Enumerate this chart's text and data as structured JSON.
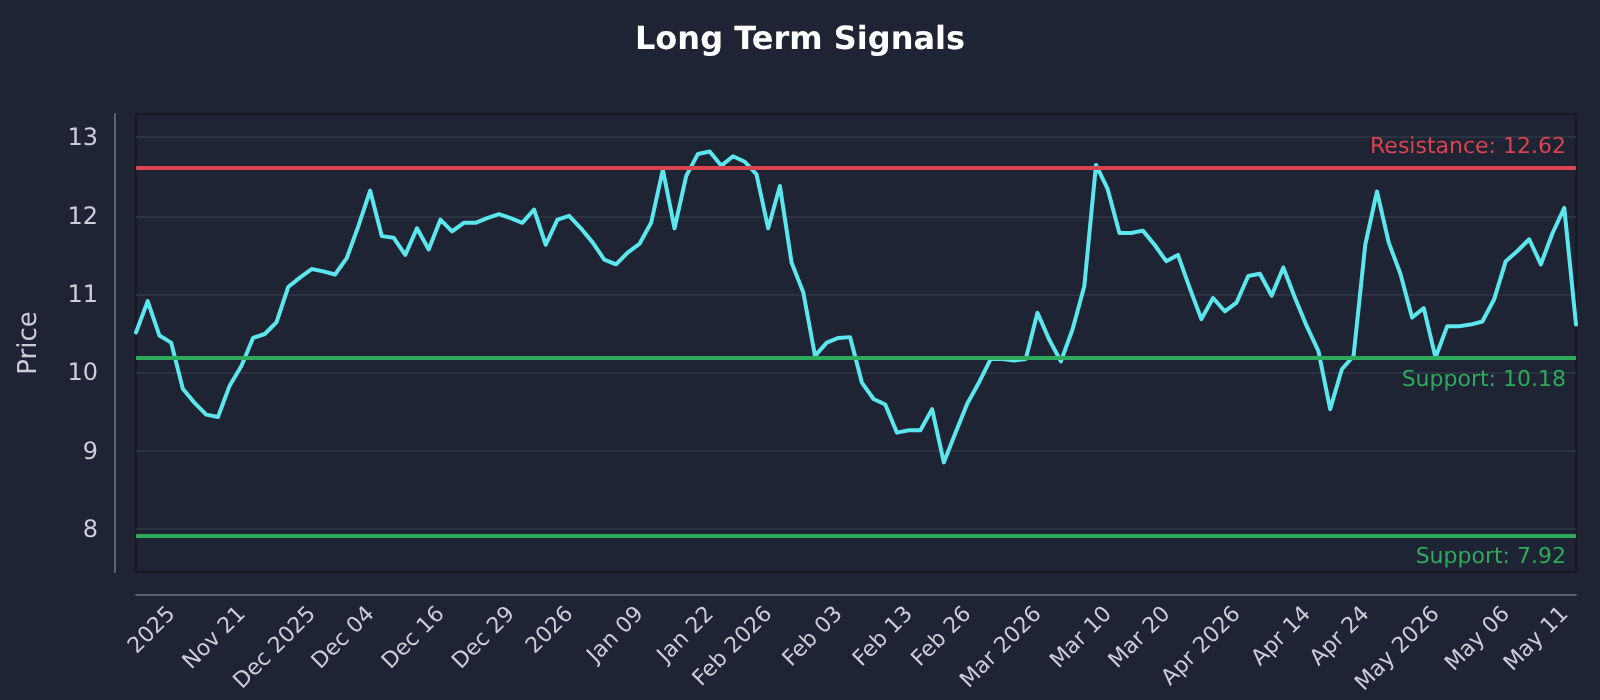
{
  "chart_data": {
    "type": "line",
    "title": "Long Term Signals",
    "ylabel": "Price",
    "categories": [
      null,
      null,
      null,
      "2025",
      null,
      null,
      null,
      null,
      null,
      "Nov 21",
      null,
      null,
      null,
      null,
      null,
      "Dec 2025",
      null,
      null,
      null,
      null,
      "Dec 04",
      null,
      null,
      null,
      null,
      null,
      "Dec 16",
      null,
      null,
      null,
      null,
      null,
      "Dec 29",
      null,
      null,
      null,
      null,
      "2026",
      null,
      null,
      null,
      null,
      null,
      "Jan 09",
      null,
      null,
      null,
      null,
      null,
      "Jan 22",
      null,
      null,
      null,
      null,
      "Feb 2026",
      null,
      null,
      null,
      null,
      null,
      "Feb 03",
      null,
      null,
      null,
      null,
      null,
      "Feb 13",
      null,
      null,
      null,
      null,
      "Feb 26",
      null,
      null,
      null,
      null,
      null,
      "Mar 2026",
      null,
      null,
      null,
      null,
      null,
      "Mar 10",
      null,
      null,
      null,
      null,
      "Mar 20",
      null,
      null,
      null,
      null,
      null,
      "Apr 2026",
      null,
      null,
      null,
      null,
      null,
      "Apr 14",
      null,
      null,
      null,
      null,
      "Apr 24",
      null,
      null,
      null,
      null,
      null,
      "May 2026",
      null,
      null,
      null,
      null,
      null,
      "May 06",
      null,
      null,
      null,
      null,
      "May 11",
      null
    ],
    "series": [
      {
        "color": "#5ce6ee",
        "values": [
          10.51,
          10.91,
          10.47,
          10.38,
          9.79,
          9.61,
          9.46,
          9.43,
          9.83,
          10.08,
          10.44,
          10.49,
          10.64,
          11.09,
          11.21,
          11.32,
          11.29,
          11.25,
          11.46,
          11.87,
          12.32,
          11.74,
          11.72,
          11.5,
          11.84,
          11.57,
          11.95,
          11.8,
          11.91,
          11.91,
          11.97,
          12.02,
          11.97,
          11.91,
          12.08,
          11.63,
          11.95,
          12.0,
          11.84,
          11.66,
          11.44,
          11.38,
          11.53,
          11.64,
          11.91,
          12.59,
          11.84,
          12.51,
          12.79,
          12.82,
          12.64,
          12.76,
          12.69,
          12.53,
          11.84,
          12.38,
          11.4,
          11.02,
          10.21,
          10.38,
          10.44,
          10.45,
          9.87,
          9.66,
          9.59,
          9.23,
          9.26,
          9.26,
          9.53,
          8.85,
          9.23,
          9.6,
          9.87,
          10.17,
          10.17,
          10.15,
          10.17,
          10.76,
          10.42,
          10.14,
          10.55,
          11.1,
          12.65,
          12.34,
          11.78,
          11.78,
          11.81,
          11.63,
          11.42,
          11.5,
          11.08,
          10.68,
          10.95,
          10.78,
          10.89,
          11.23,
          11.26,
          10.98,
          11.34,
          10.95,
          10.59,
          10.27,
          9.53,
          10.04,
          10.21,
          11.63,
          12.31,
          11.66,
          11.26,
          10.7,
          10.82,
          10.19,
          10.59,
          10.59,
          10.61,
          10.65,
          10.93,
          11.42,
          11.55,
          11.7,
          11.38,
          11.78,
          12.1,
          10.61
        ]
      }
    ],
    "ylim": [
      7.45,
      13.3
    ],
    "yticks": [
      8,
      9,
      10,
      11,
      12,
      13
    ],
    "grid": "y",
    "marker": "none",
    "line_style": "solid",
    "ref_lines": [
      {
        "axis": "y",
        "value": 12.62,
        "label": "Resistance: 12.62",
        "color": "#d9444f"
      },
      {
        "axis": "y",
        "value": 10.18,
        "label": "Support: 10.18",
        "color": "#2eaa5c"
      },
      {
        "axis": "y",
        "value": 7.92,
        "label": "Support: 7.92",
        "color": "#2eaa5c"
      }
    ]
  }
}
